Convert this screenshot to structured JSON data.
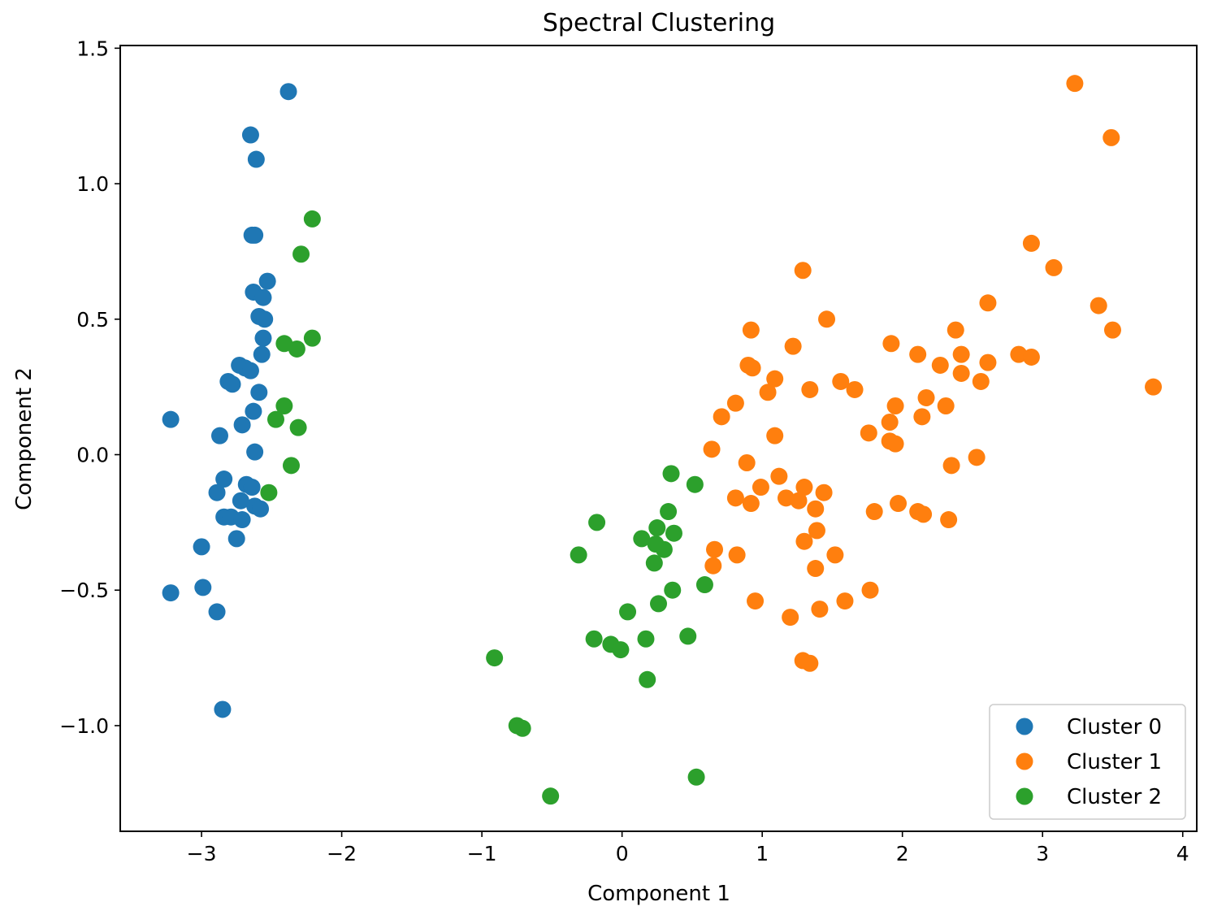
{
  "chart_data": {
    "type": "scatter",
    "title": "Spectral Clustering",
    "xlabel": "Component 1",
    "ylabel": "Component 2",
    "xlim": [
      -3.58,
      4.1
    ],
    "ylim": [
      -1.39,
      1.51
    ],
    "xticks": [
      -3,
      -2,
      -1,
      0,
      1,
      2,
      3,
      4
    ],
    "yticks": [
      -1.0,
      -0.5,
      0.0,
      0.5,
      1.0,
      1.5
    ],
    "xtick_labels": [
      "−3",
      "−2",
      "−1",
      "0",
      "1",
      "2",
      "3",
      "4"
    ],
    "ytick_labels": [
      "−1.0",
      "−0.5",
      "0.0",
      "0.5",
      "1.0",
      "1.5"
    ],
    "grid": false,
    "legend_position": "lower right",
    "series": [
      {
        "name": "Cluster 0",
        "color": "#1f77b4",
        "points": [
          [
            -2.38,
            1.34
          ],
          [
            -2.65,
            1.18
          ],
          [
            -2.61,
            1.09
          ],
          [
            -2.64,
            0.81
          ],
          [
            -2.62,
            0.81
          ],
          [
            -2.53,
            0.64
          ],
          [
            -2.63,
            0.6
          ],
          [
            -2.56,
            0.58
          ],
          [
            -2.59,
            0.51
          ],
          [
            -2.55,
            0.5
          ],
          [
            -2.56,
            0.43
          ],
          [
            -2.57,
            0.37
          ],
          [
            -2.73,
            0.33
          ],
          [
            -2.69,
            0.32
          ],
          [
            -2.65,
            0.31
          ],
          [
            -2.81,
            0.27
          ],
          [
            -2.78,
            0.26
          ],
          [
            -2.59,
            0.23
          ],
          [
            -3.22,
            0.13
          ],
          [
            -2.63,
            0.16
          ],
          [
            -2.71,
            0.11
          ],
          [
            -2.87,
            0.07
          ],
          [
            -2.62,
            0.01
          ],
          [
            -2.84,
            -0.09
          ],
          [
            -2.89,
            -0.14
          ],
          [
            -2.68,
            -0.11
          ],
          [
            -2.64,
            -0.12
          ],
          [
            -2.72,
            -0.17
          ],
          [
            -2.62,
            -0.19
          ],
          [
            -2.58,
            -0.2
          ],
          [
            -2.84,
            -0.23
          ],
          [
            -2.79,
            -0.23
          ],
          [
            -2.71,
            -0.24
          ],
          [
            -2.75,
            -0.31
          ],
          [
            -3.0,
            -0.34
          ],
          [
            -2.99,
            -0.49
          ],
          [
            -3.22,
            -0.51
          ],
          [
            -2.89,
            -0.58
          ],
          [
            -2.85,
            -0.94
          ]
        ]
      },
      {
        "name": "Cluster 1",
        "color": "#ff7f0e",
        "points": [
          [
            3.23,
            1.37
          ],
          [
            3.49,
            1.17
          ],
          [
            2.92,
            0.78
          ],
          [
            3.08,
            0.69
          ],
          [
            1.29,
            0.68
          ],
          [
            2.61,
            0.56
          ],
          [
            3.4,
            0.55
          ],
          [
            1.46,
            0.5
          ],
          [
            0.92,
            0.46
          ],
          [
            2.38,
            0.46
          ],
          [
            3.5,
            0.46
          ],
          [
            1.22,
            0.4
          ],
          [
            1.92,
            0.41
          ],
          [
            2.11,
            0.37
          ],
          [
            2.42,
            0.37
          ],
          [
            2.83,
            0.37
          ],
          [
            2.92,
            0.36
          ],
          [
            2.61,
            0.34
          ],
          [
            2.27,
            0.33
          ],
          [
            0.9,
            0.33
          ],
          [
            0.93,
            0.32
          ],
          [
            2.42,
            0.3
          ],
          [
            1.09,
            0.28
          ],
          [
            2.56,
            0.27
          ],
          [
            1.56,
            0.27
          ],
          [
            1.34,
            0.24
          ],
          [
            1.66,
            0.24
          ],
          [
            3.79,
            0.25
          ],
          [
            1.04,
            0.23
          ],
          [
            2.17,
            0.21
          ],
          [
            1.95,
            0.18
          ],
          [
            2.31,
            0.18
          ],
          [
            0.81,
            0.19
          ],
          [
            0.71,
            0.14
          ],
          [
            2.14,
            0.14
          ],
          [
            1.91,
            0.12
          ],
          [
            1.09,
            0.07
          ],
          [
            1.76,
            0.08
          ],
          [
            1.91,
            0.05
          ],
          [
            1.95,
            0.04
          ],
          [
            0.64,
            0.02
          ],
          [
            2.53,
            -0.01
          ],
          [
            2.35,
            -0.04
          ],
          [
            0.89,
            -0.03
          ],
          [
            1.12,
            -0.08
          ],
          [
            1.3,
            -0.12
          ],
          [
            0.99,
            -0.12
          ],
          [
            1.44,
            -0.14
          ],
          [
            0.81,
            -0.16
          ],
          [
            1.17,
            -0.16
          ],
          [
            0.92,
            -0.18
          ],
          [
            1.26,
            -0.17
          ],
          [
            1.97,
            -0.18
          ],
          [
            1.38,
            -0.2
          ],
          [
            2.11,
            -0.21
          ],
          [
            2.15,
            -0.22
          ],
          [
            1.8,
            -0.21
          ],
          [
            2.33,
            -0.24
          ],
          [
            1.39,
            -0.28
          ],
          [
            1.3,
            -0.32
          ],
          [
            0.66,
            -0.35
          ],
          [
            0.82,
            -0.37
          ],
          [
            1.52,
            -0.37
          ],
          [
            0.65,
            -0.41
          ],
          [
            1.38,
            -0.42
          ],
          [
            1.77,
            -0.5
          ],
          [
            0.95,
            -0.54
          ],
          [
            1.59,
            -0.54
          ],
          [
            1.41,
            -0.57
          ],
          [
            1.2,
            -0.6
          ],
          [
            1.29,
            -0.76
          ],
          [
            1.34,
            -0.77
          ]
        ]
      },
      {
        "name": "Cluster 2",
        "color": "#2ca02c",
        "points": [
          [
            -2.21,
            0.87
          ],
          [
            -2.29,
            0.74
          ],
          [
            -2.21,
            0.43
          ],
          [
            -2.41,
            0.41
          ],
          [
            -2.32,
            0.39
          ],
          [
            -2.41,
            0.18
          ],
          [
            -2.47,
            0.13
          ],
          [
            -2.31,
            0.1
          ],
          [
            -2.36,
            -0.04
          ],
          [
            -2.52,
            -0.14
          ],
          [
            0.35,
            -0.07
          ],
          [
            0.52,
            -0.11
          ],
          [
            0.33,
            -0.21
          ],
          [
            -0.18,
            -0.25
          ],
          [
            0.25,
            -0.27
          ],
          [
            0.37,
            -0.29
          ],
          [
            0.14,
            -0.31
          ],
          [
            0.24,
            -0.33
          ],
          [
            0.3,
            -0.35
          ],
          [
            -0.31,
            -0.37
          ],
          [
            0.23,
            -0.4
          ],
          [
            0.59,
            -0.48
          ],
          [
            0.36,
            -0.5
          ],
          [
            0.26,
            -0.55
          ],
          [
            0.04,
            -0.58
          ],
          [
            0.47,
            -0.67
          ],
          [
            -0.2,
            -0.68
          ],
          [
            0.17,
            -0.68
          ],
          [
            -0.08,
            -0.7
          ],
          [
            -0.01,
            -0.72
          ],
          [
            -0.91,
            -0.75
          ],
          [
            0.18,
            -0.83
          ],
          [
            -0.75,
            -1.0
          ],
          [
            -0.71,
            -1.01
          ],
          [
            0.53,
            -1.19
          ],
          [
            -0.51,
            -1.26
          ]
        ]
      }
    ]
  }
}
